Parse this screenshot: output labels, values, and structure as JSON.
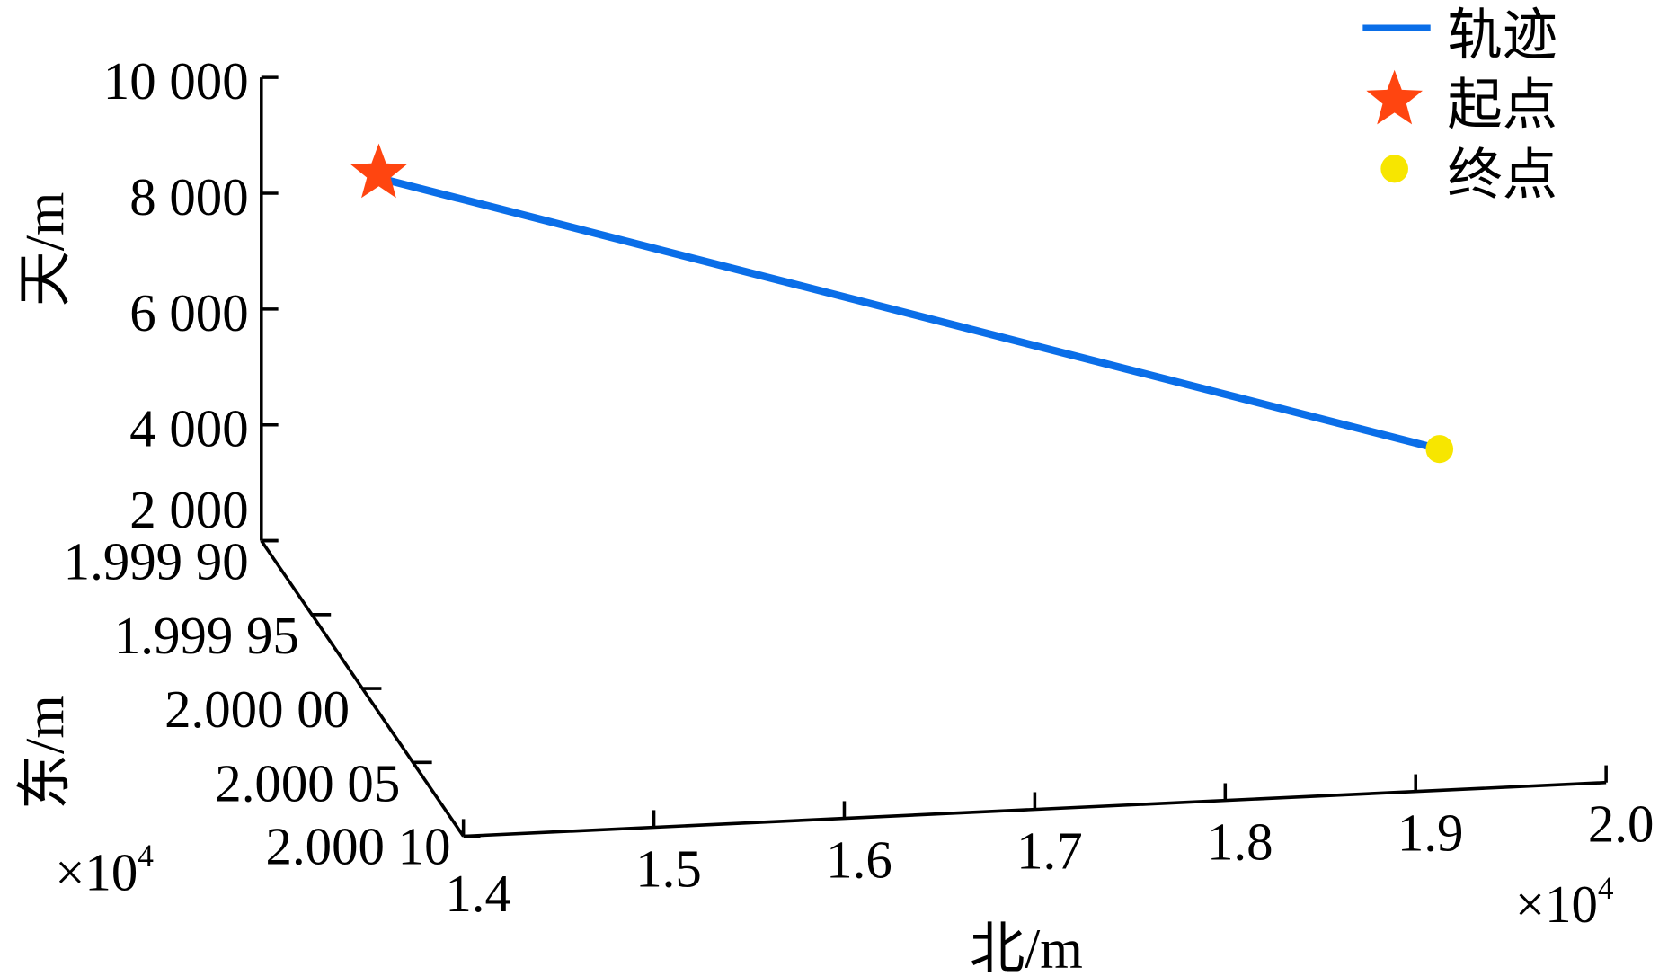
{
  "chart_data": {
    "type": "line3d",
    "axes": {
      "x": {
        "label": "北/m",
        "ticks": [
          "1.4",
          "1.5",
          "1.6",
          "1.7",
          "1.8",
          "1.9",
          "2.0"
        ],
        "tick_values": [
          14000,
          15000,
          16000,
          17000,
          18000,
          19000,
          20000
        ],
        "multiplier": "×10",
        "exponent": "4",
        "range": [
          14000,
          20000
        ]
      },
      "y": {
        "label": "东/m",
        "ticks": [
          "1.999 90",
          "1.999 95",
          "2.000 00",
          "2.000 05",
          "2.000 10"
        ],
        "tick_values": [
          19999.0,
          19999.5,
          20000.0,
          20000.5,
          20001.0
        ],
        "multiplier": "×10",
        "exponent": "4",
        "range": [
          19999.0,
          20001.0
        ]
      },
      "z": {
        "label": "天/m",
        "ticks": [
          "2 000",
          "4 000",
          "6 000",
          "8 000",
          "10 000"
        ],
        "tick_values": [
          2000,
          4000,
          6000,
          8000,
          10000
        ],
        "range": [
          2000,
          10000
        ]
      }
    },
    "series": [
      {
        "name": "轨迹",
        "type": "line",
        "color": "#0a6ee8",
        "points": [
          [
            14590,
            19999.05,
            8300
          ],
          [
            19990,
            19999.37,
            3600
          ]
        ]
      },
      {
        "name": "起点",
        "type": "marker-star",
        "color": "#ff4510",
        "point": [
          14590,
          19999.05,
          8300
        ]
      },
      {
        "name": "终点",
        "type": "marker-circle",
        "color": "#f7e600",
        "point": [
          19990,
          19999.37,
          3600
        ]
      }
    ],
    "legend": {
      "position": "top-right",
      "entries": [
        "轨迹",
        "起点",
        "终点"
      ]
    },
    "grid": false
  }
}
